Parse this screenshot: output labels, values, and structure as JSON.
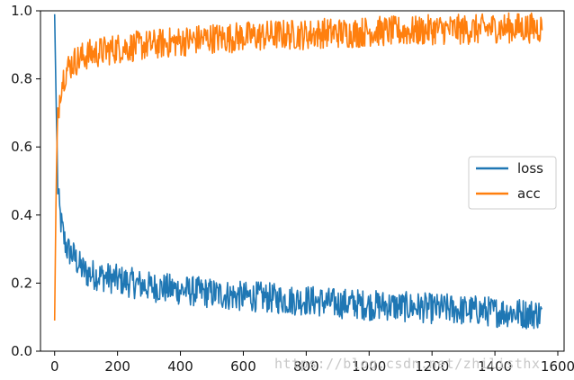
{
  "chart_data": {
    "type": "line",
    "title": "",
    "xlabel": "",
    "ylabel": "",
    "xlim": [
      -45,
      1620
    ],
    "ylim": [
      0.0,
      1.0
    ],
    "x_ticks": [
      "0",
      "200",
      "400",
      "600",
      "800",
      "1000",
      "1200",
      "1400",
      "1600"
    ],
    "y_ticks": [
      "0.0",
      "0.2",
      "0.4",
      "0.6",
      "0.8",
      "1.0"
    ],
    "grid": false,
    "legend_position": "center-right",
    "series": [
      {
        "name": "loss",
        "color": "#1f77b4",
        "x": [
          0,
          5,
          10,
          15,
          20,
          30,
          40,
          50,
          60,
          80,
          100,
          150,
          200,
          250,
          300,
          350,
          400,
          450,
          500,
          550,
          600,
          650,
          700,
          750,
          800,
          850,
          900,
          950,
          1000,
          1050,
          1100,
          1150,
          1200,
          1250,
          1300,
          1350,
          1400,
          1450,
          1500,
          1550
        ],
        "y": [
          0.99,
          0.72,
          0.48,
          0.42,
          0.38,
          0.33,
          0.3,
          0.29,
          0.28,
          0.25,
          0.23,
          0.22,
          0.21,
          0.2,
          0.19,
          0.185,
          0.18,
          0.175,
          0.17,
          0.165,
          0.16,
          0.16,
          0.155,
          0.15,
          0.15,
          0.145,
          0.14,
          0.14,
          0.135,
          0.135,
          0.13,
          0.13,
          0.125,
          0.125,
          0.12,
          0.12,
          0.115,
          0.115,
          0.11,
          0.11
        ],
        "noise": 0.045
      },
      {
        "name": "acc",
        "color": "#ff7f0e",
        "x": [
          0,
          5,
          10,
          15,
          20,
          30,
          40,
          50,
          60,
          80,
          100,
          150,
          200,
          250,
          300,
          350,
          400,
          450,
          500,
          550,
          600,
          650,
          700,
          750,
          800,
          850,
          900,
          950,
          1000,
          1050,
          1100,
          1150,
          1200,
          1250,
          1300,
          1350,
          1400,
          1450,
          1500,
          1550
        ],
        "y": [
          0.09,
          0.5,
          0.68,
          0.74,
          0.78,
          0.81,
          0.83,
          0.84,
          0.85,
          0.86,
          0.87,
          0.88,
          0.89,
          0.895,
          0.9,
          0.905,
          0.91,
          0.915,
          0.92,
          0.92,
          0.925,
          0.925,
          0.93,
          0.93,
          0.93,
          0.935,
          0.935,
          0.935,
          0.94,
          0.94,
          0.94,
          0.94,
          0.945,
          0.945,
          0.945,
          0.945,
          0.95,
          0.95,
          0.95,
          0.95
        ],
        "noise": 0.045
      }
    ]
  },
  "watermark": "https://blog.csdn.net/zhilisthx"
}
